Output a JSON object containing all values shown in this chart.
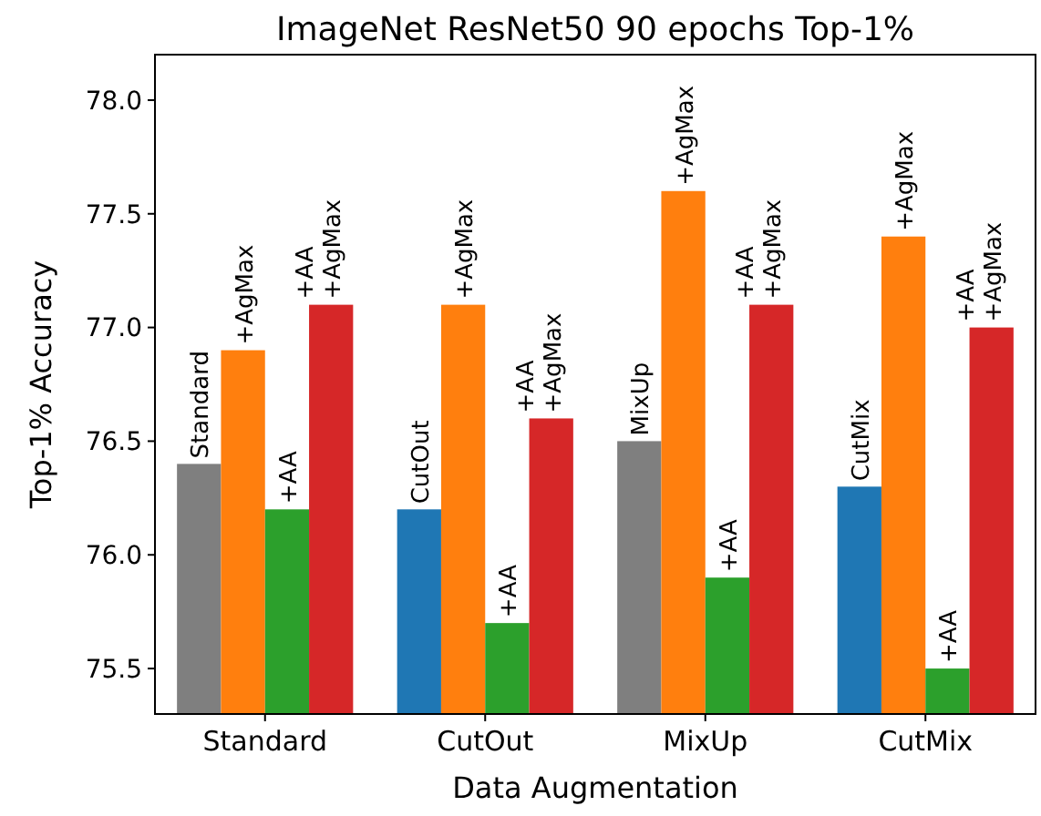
{
  "chart_data": {
    "type": "bar",
    "title": "ImageNet ResNet50 90 epochs Top-1%",
    "xlabel": "Data Augmentation",
    "ylabel": "Top-1% Accuracy",
    "categories": [
      "Standard",
      "CutOut",
      "MixUp",
      "CutMix"
    ],
    "ylim": [
      75.3,
      78.2
    ],
    "yticks": [
      {
        "value": 75.5,
        "label": "75.5"
      },
      {
        "value": 76,
        "label": "76.0"
      },
      {
        "value": 76.5,
        "label": "76.5"
      },
      {
        "value": 77,
        "label": "77.0"
      },
      {
        "value": 77.5,
        "label": "77.5"
      },
      {
        "value": 78,
        "label": "78.0"
      }
    ],
    "grid": false,
    "series": [
      {
        "colors": [
          "#7f7f7f",
          "#1f77b4",
          "#7f7f7f",
          "#1f77b4"
        ],
        "values": [
          76.4,
          76.2,
          76.5,
          76.3
        ],
        "value_labels": [
          "Standard",
          "CutOut",
          "MixUp",
          "CutMix"
        ]
      },
      {
        "color": "#ff7f0e",
        "values": [
          76.9,
          77.1,
          77.6,
          77.4
        ],
        "value_labels": [
          "+AgMax",
          "+AgMax",
          "+AgMax",
          "+AgMax"
        ]
      },
      {
        "color": "#2ca02c",
        "values": [
          76.2,
          75.7,
          75.9,
          75.5
        ],
        "value_labels": [
          "+AA",
          "+AA",
          "+AA",
          "+AA"
        ]
      },
      {
        "color": "#d62728",
        "values": [
          77.1,
          76.6,
          77.1,
          77.0
        ],
        "value_labels": [
          "+AA\n+AgMax",
          "+AA\n+AgMax",
          "+AA\n+AgMax",
          "+AA\n+AgMax"
        ]
      }
    ]
  }
}
